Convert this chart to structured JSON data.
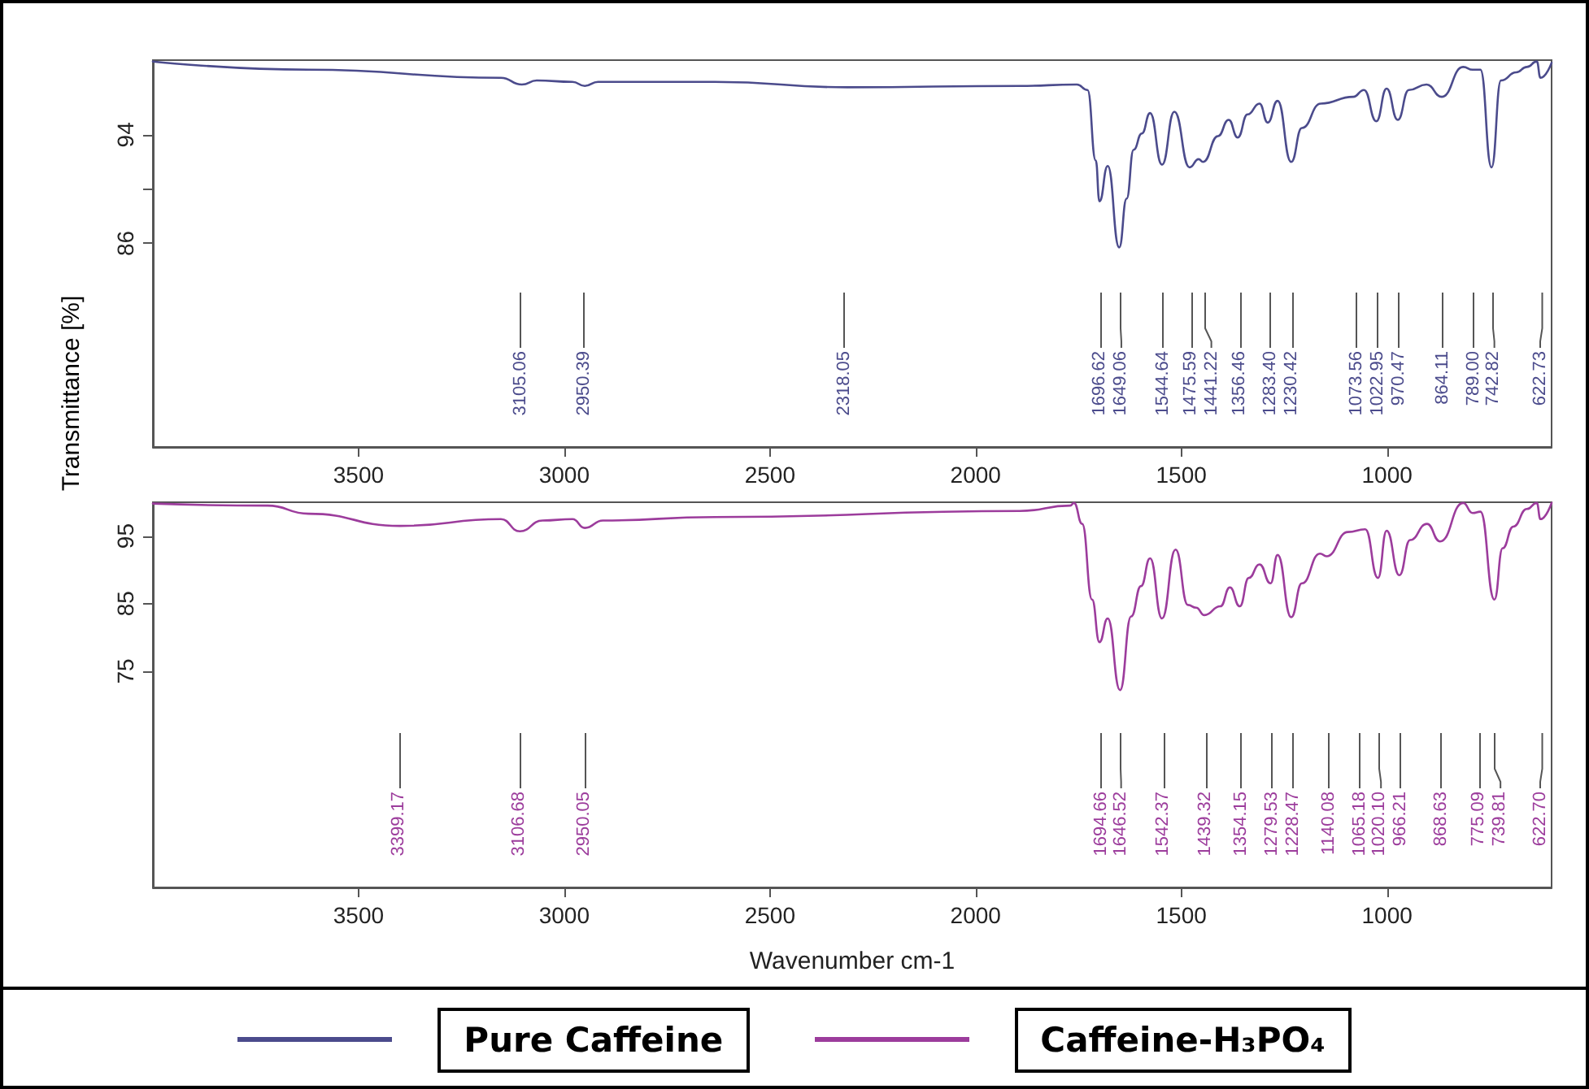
{
  "chart_data": [
    {
      "type": "line",
      "ylabel": "Transmittance [%]",
      "xlim": [
        4000,
        600
      ],
      "xticks": [
        3500,
        3000,
        2500,
        2000,
        1500,
        1000
      ],
      "ylim": [
        71,
        99.5
      ],
      "yticks": [
        86,
        {
          "value": 90,
          "label": null
        },
        94
      ],
      "grid": false,
      "legend": "bottom",
      "marker": "none",
      "line_style": "solid",
      "series": [
        {
          "name": "Pure Caffeine",
          "color": "#4b4b8c",
          "x": [
            4000,
            3622,
            3154,
            3103,
            3067,
            2980,
            2950,
            2918,
            2634,
            2312,
            1893,
            1754,
            1728,
            1708,
            1699,
            1679,
            1651,
            1633,
            1616,
            1596,
            1576,
            1547,
            1517,
            1480,
            1458,
            1447,
            1411,
            1385,
            1363,
            1339,
            1310,
            1290,
            1266,
            1233,
            1207,
            1161,
            1082,
            1056,
            1026,
            1001,
            974,
            947,
            904,
            867,
            815,
            792,
            773,
            746,
            723,
            686,
            660,
            636,
            627,
            600
          ],
          "values": [
            99.4,
            98.8,
            98.2,
            97.7,
            98.0,
            97.9,
            97.6,
            97.9,
            97.9,
            97.5,
            97.6,
            97.7,
            97.3,
            92.1,
            89.1,
            91.7,
            85.7,
            89.3,
            92.9,
            94.1,
            95.6,
            91.8,
            95.7,
            91.6,
            92.2,
            92.0,
            93.9,
            95.1,
            93.8,
            95.5,
            96.3,
            94.9,
            96.5,
            92.0,
            94.5,
            96.3,
            96.8,
            97.3,
            95.0,
            97.4,
            95.1,
            97.3,
            97.7,
            96.8,
            99.0,
            98.8,
            98.8,
            91.6,
            98.0,
            98.6,
            99.0,
            99.4,
            98.2,
            99.3
          ]
        }
      ],
      "ref_lines": [
        {
          "axis": "x",
          "value": 3105.06,
          "label": "3105.06"
        },
        {
          "axis": "x",
          "value": 2950.39,
          "label": "2950.39"
        },
        {
          "axis": "x",
          "value": 2318.05,
          "label": "2318.05"
        },
        {
          "axis": "x",
          "value": 1696.62,
          "label": "1696.62"
        },
        {
          "axis": "x",
          "value": 1649.06,
          "label": "1649.06"
        },
        {
          "axis": "x",
          "value": 1544.64,
          "label": "1544.64"
        },
        {
          "axis": "x",
          "value": 1475.59,
          "label": "1475.59"
        },
        {
          "axis": "x",
          "value": 1441.22,
          "label": "1441.22"
        },
        {
          "axis": "x",
          "value": 1356.46,
          "label": "1356.46"
        },
        {
          "axis": "x",
          "value": 1283.4,
          "label": "1283.40"
        },
        {
          "axis": "x",
          "value": 1230.42,
          "label": "1230.42"
        },
        {
          "axis": "x",
          "value": 1073.56,
          "label": "1073.56"
        },
        {
          "axis": "x",
          "value": 1022.95,
          "label": "1022.95"
        },
        {
          "axis": "x",
          "value": 970.47,
          "label": "970.47"
        },
        {
          "axis": "x",
          "value": 864.11,
          "label": "864.11"
        },
        {
          "axis": "x",
          "value": 789.0,
          "label": "789.00"
        },
        {
          "axis": "x",
          "value": 742.82,
          "label": "742.82"
        },
        {
          "axis": "x",
          "value": 622.73,
          "label": "622.73"
        }
      ]
    },
    {
      "type": "line",
      "xlabel": "Wavenumber cm-1",
      "xlim": [
        4000,
        600
      ],
      "xticks": [
        3500,
        3000,
        2500,
        2000,
        1500,
        1000
      ],
      "ylim": [
        43,
        100
      ],
      "yticks": [
        75,
        85,
        95
      ],
      "grid": false,
      "legend": "bottom",
      "marker": "none",
      "line_style": "solid",
      "series": [
        {
          "name": "Caffeine-H₃PO₄",
          "color": "#9c3c9c",
          "x": [
            4000,
            3721,
            3622,
            3400,
            3154,
            3108,
            3053,
            2980,
            2950,
            2906,
            2634,
            1893,
            1770,
            1761,
            1741,
            1717,
            1699,
            1679,
            1649,
            1622,
            1598,
            1576,
            1547,
            1514,
            1484,
            1464,
            1444,
            1405,
            1382,
            1358,
            1336,
            1310,
            1283,
            1266,
            1233,
            1207,
            1163,
            1147,
            1095,
            1053,
            1022,
            1001,
            970,
            944,
            903,
            871,
            815,
            792,
            773,
            739,
            719,
            693,
            660,
            636,
            627,
            600
          ],
          "values": [
            99.8,
            99.5,
            98.3,
            96.5,
            97.5,
            95.7,
            97.3,
            97.5,
            96.2,
            97.3,
            97.8,
            98.7,
            99.5,
            99.9,
            96.8,
            85.6,
            79.3,
            82.8,
            72.2,
            83.1,
            87.6,
            91.7,
            82.8,
            93.0,
            84.8,
            84.4,
            83.3,
            84.6,
            87.4,
            84.6,
            88.8,
            90.8,
            88.0,
            92.2,
            83.0,
            88.0,
            92.4,
            92.0,
            95.6,
            96.0,
            88.8,
            95.8,
            89.2,
            94.4,
            96.8,
            94.2,
            99.9,
            98.4,
            98.6,
            85.6,
            93.2,
            96.4,
            99.0,
            99.9,
            97.5,
            99.9
          ]
        }
      ],
      "ref_lines": [
        {
          "axis": "x",
          "value": 3399.17,
          "label": "3399.17"
        },
        {
          "axis": "x",
          "value": 3106.68,
          "label": "3106.68"
        },
        {
          "axis": "x",
          "value": 2950.05,
          "label": "2950.05"
        },
        {
          "axis": "x",
          "value": 1694.66,
          "label": "1694.66"
        },
        {
          "axis": "x",
          "value": 1646.52,
          "label": "1646.52"
        },
        {
          "axis": "x",
          "value": 1542.37,
          "label": "1542.37"
        },
        {
          "axis": "x",
          "value": 1439.32,
          "label": "1439.32"
        },
        {
          "axis": "x",
          "value": 1354.15,
          "label": "1354.15"
        },
        {
          "axis": "x",
          "value": 1279.53,
          "label": "1279.53"
        },
        {
          "axis": "x",
          "value": 1228.47,
          "label": "1228.47"
        },
        {
          "axis": "x",
          "value": 1140.08,
          "label": "1140.08"
        },
        {
          "axis": "x",
          "value": 1065.18,
          "label": "1065.18"
        },
        {
          "axis": "x",
          "value": 1020.1,
          "label": "1020.10"
        },
        {
          "axis": "x",
          "value": 966.21,
          "label": "966.21"
        },
        {
          "axis": "x",
          "value": 868.63,
          "label": "868.63"
        },
        {
          "axis": "x",
          "value": 775.09,
          "label": "775.09"
        },
        {
          "axis": "x",
          "value": 739.81,
          "label": "739.81"
        },
        {
          "axis": "x",
          "value": 622.7,
          "label": "622.70"
        }
      ]
    }
  ]
}
